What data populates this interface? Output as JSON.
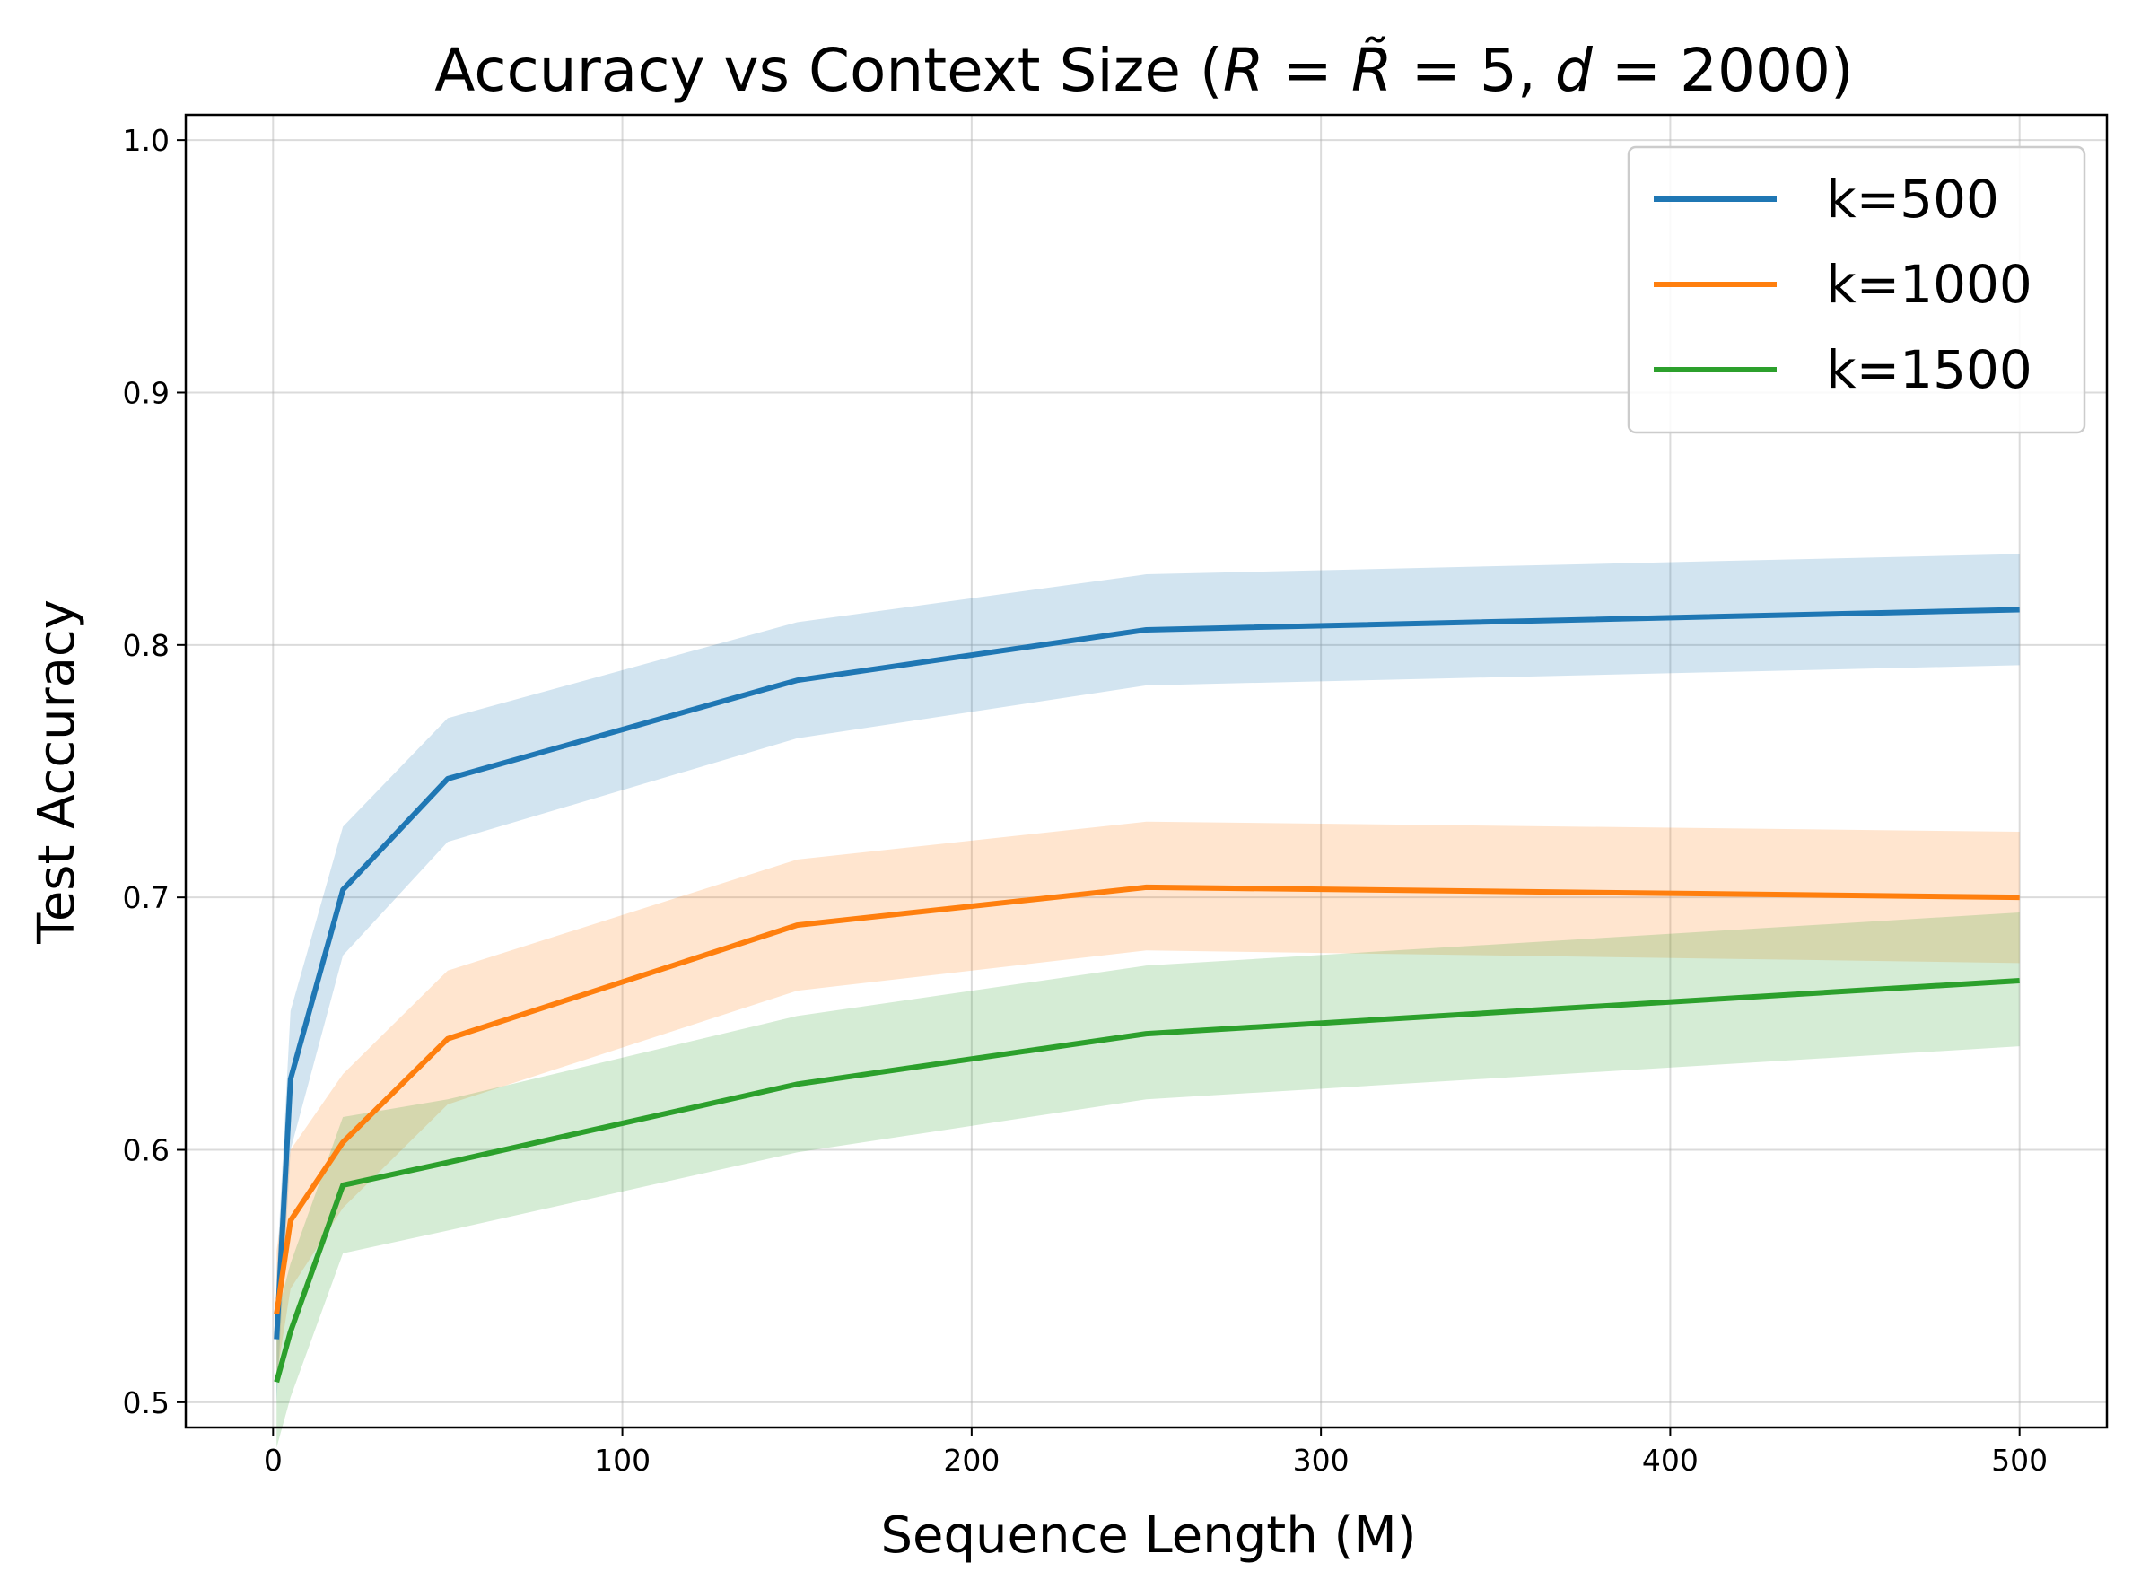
{
  "chart_data": {
    "type": "line",
    "title_parts": [
      {
        "text": "Accuracy vs Context Size (",
        "style": "normal"
      },
      {
        "text": "R",
        "style": "italic"
      },
      {
        "text": " = ",
        "style": "normal"
      },
      {
        "text": "R̃",
        "style": "italic"
      },
      {
        "text": " = 5, ",
        "style": "normal"
      },
      {
        "text": "d",
        "style": "italic"
      },
      {
        "text": " = 2000)",
        "style": "normal"
      }
    ],
    "xlabel": "Sequence Length (M)",
    "ylabel": "Test Accuracy",
    "xlim": [
      -25,
      525
    ],
    "ylim": [
      0.49,
      1.01
    ],
    "xticks": [
      0,
      100,
      200,
      300,
      400,
      500
    ],
    "yticks": [
      0.5,
      0.6,
      0.7,
      0.8,
      0.9,
      1.0
    ],
    "xtick_labels": [
      "0",
      "100",
      "200",
      "300",
      "400",
      "500"
    ],
    "ytick_labels": [
      "0.5",
      "0.6",
      "0.7",
      "0.8",
      "0.9",
      "1.0"
    ],
    "grid": true,
    "legend_position": "top-right",
    "x": [
      1,
      5,
      20,
      50,
      150,
      250,
      500
    ],
    "series": [
      {
        "name": "k=500",
        "color": "#1f77b4",
        "values": [
          0.525,
          0.628,
          0.703,
          0.747,
          0.786,
          0.806,
          0.814
        ],
        "lower": [
          0.5,
          0.6,
          0.677,
          0.722,
          0.763,
          0.784,
          0.792
        ],
        "upper": [
          0.55,
          0.655,
          0.728,
          0.771,
          0.809,
          0.828,
          0.836
        ]
      },
      {
        "name": "k=1000",
        "color": "#ff7f0e",
        "values": [
          0.535,
          0.572,
          0.603,
          0.644,
          0.689,
          0.704,
          0.7
        ],
        "lower": [
          0.51,
          0.545,
          0.577,
          0.618,
          0.663,
          0.679,
          0.674
        ],
        "upper": [
          0.56,
          0.6,
          0.63,
          0.671,
          0.715,
          0.73,
          0.726
        ]
      },
      {
        "name": "k=1500",
        "color": "#2ca02c",
        "values": [
          0.508,
          0.528,
          0.586,
          0.595,
          0.626,
          0.646,
          0.667
        ],
        "lower": [
          0.482,
          0.502,
          0.559,
          0.568,
          0.599,
          0.62,
          0.641
        ],
        "upper": [
          0.534,
          0.555,
          0.613,
          0.62,
          0.653,
          0.673,
          0.694
        ]
      }
    ]
  }
}
